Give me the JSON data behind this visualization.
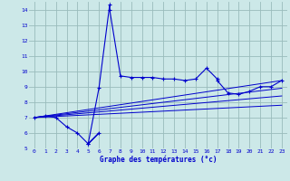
{
  "xlabel": "Graphe des températures (°c)",
  "background_color": "#cce8e8",
  "grid_color": "#99bbbb",
  "line_color": "#0000cc",
  "xlim": [
    -0.5,
    23.5
  ],
  "ylim": [
    5,
    14.5
  ],
  "yticks": [
    5,
    6,
    7,
    8,
    9,
    10,
    11,
    12,
    13,
    14
  ],
  "xticks": [
    0,
    1,
    2,
    3,
    4,
    5,
    6,
    7,
    8,
    9,
    10,
    11,
    12,
    13,
    14,
    15,
    16,
    17,
    18,
    19,
    20,
    21,
    22,
    23
  ],
  "main_x": [
    0,
    1,
    2,
    3,
    4,
    5,
    6,
    5,
    6,
    7,
    7,
    8,
    9,
    10,
    11,
    12,
    13,
    14,
    15,
    16,
    17,
    17,
    18,
    19,
    20,
    21,
    22,
    23
  ],
  "main_y": [
    7.0,
    7.1,
    7.0,
    6.4,
    6.0,
    5.3,
    6.0,
    5.3,
    8.9,
    14.3,
    14.0,
    9.7,
    9.6,
    9.6,
    9.6,
    9.5,
    9.5,
    9.4,
    9.5,
    10.2,
    9.5,
    9.4,
    8.6,
    8.5,
    8.7,
    9.0,
    9.0,
    9.4
  ],
  "reg_lines": [
    {
      "x": [
        0,
        23
      ],
      "y": [
        7.0,
        9.4
      ]
    },
    {
      "x": [
        0,
        23
      ],
      "y": [
        7.0,
        8.9
      ]
    },
    {
      "x": [
        0,
        23
      ],
      "y": [
        7.0,
        8.4
      ]
    },
    {
      "x": [
        0,
        23
      ],
      "y": [
        7.0,
        7.8
      ]
    }
  ]
}
